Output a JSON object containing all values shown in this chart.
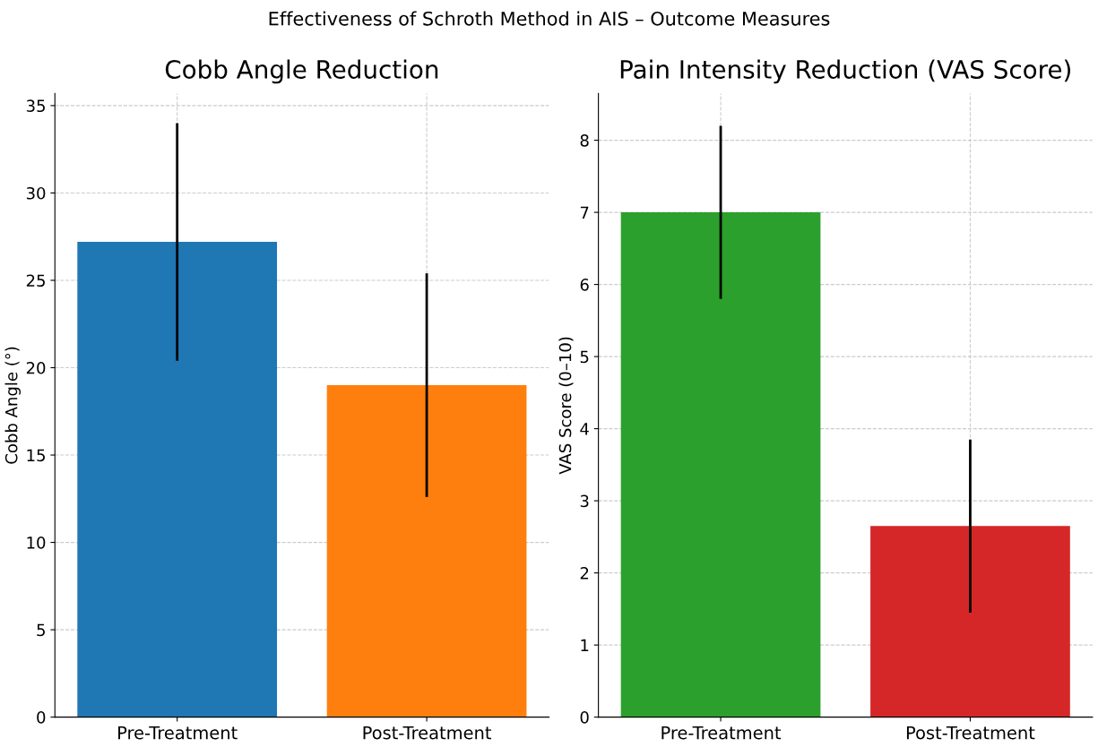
{
  "chart_data": [
    {
      "type": "bar",
      "title": "Cobb Angle Reduction",
      "ylabel": "Cobb Angle (°)",
      "annotations": [
        "Effectiveness of Schroth Method in AIS – Outcome Measures"
      ],
      "categories": [
        "Pre-Treatment",
        "Post-Treatment"
      ],
      "values": [
        27.2,
        19.0
      ],
      "errors": [
        6.8,
        6.4
      ],
      "colors": [
        "#1f77b4",
        "#ff7f0e"
      ],
      "ylim": [
        0,
        35.7
      ],
      "yticks": [
        0,
        5,
        10,
        15,
        20,
        25,
        30,
        35
      ],
      "grid": true,
      "legend": false
    },
    {
      "type": "bar",
      "title": "Pain Intensity Reduction (VAS Score)",
      "ylabel": "VAS Score (0–10)",
      "categories": [
        "Pre-Treatment",
        "Post-Treatment"
      ],
      "values": [
        7.0,
        2.65
      ],
      "errors": [
        1.2,
        1.2
      ],
      "colors": [
        "#2ca02c",
        "#d62728"
      ],
      "ylim": [
        0,
        8.65
      ],
      "yticks": [
        0,
        1,
        2,
        3,
        4,
        5,
        6,
        7,
        8
      ],
      "grid": true,
      "legend": false
    }
  ]
}
